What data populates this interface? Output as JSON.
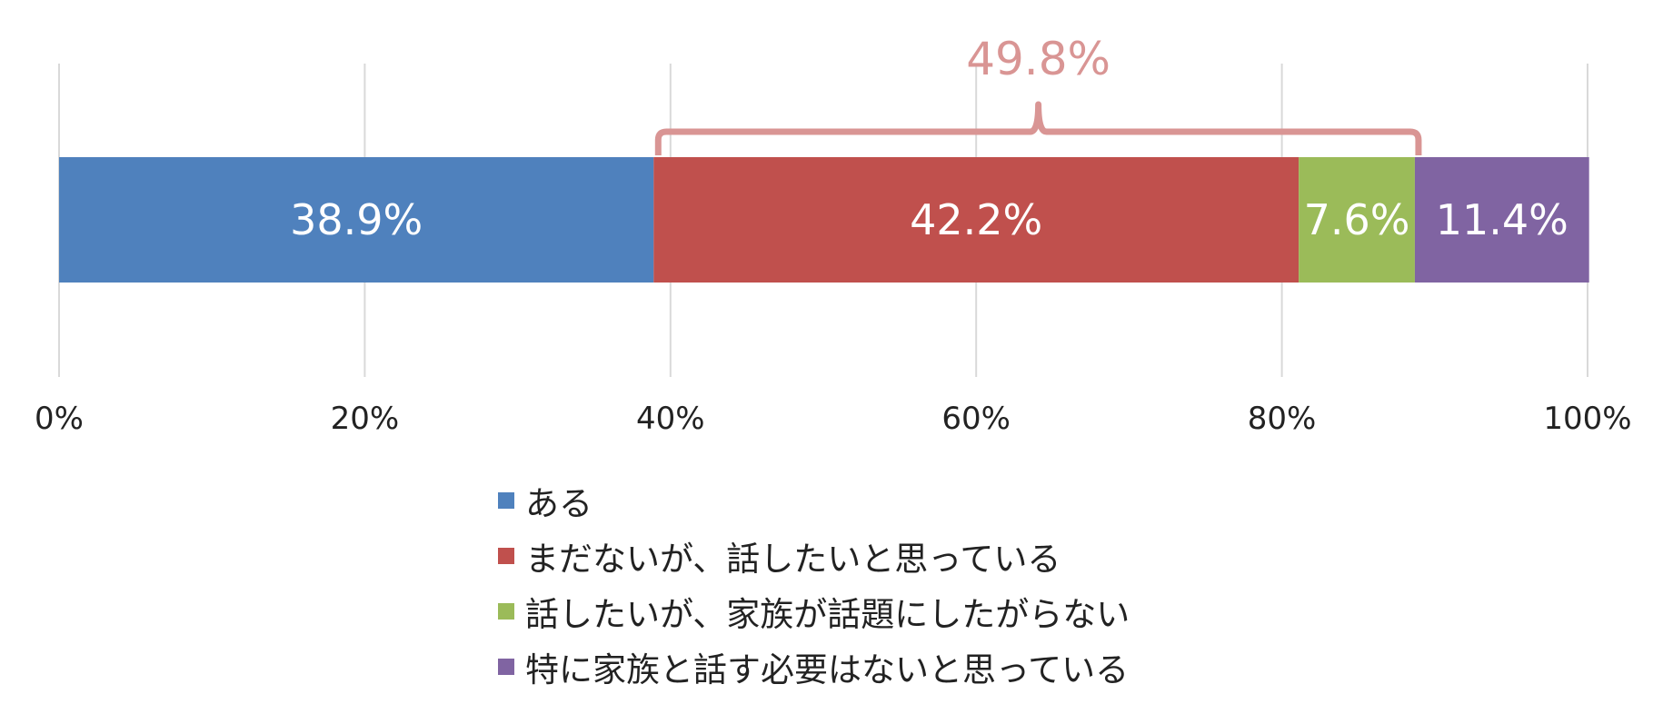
{
  "chart_data": {
    "type": "bar",
    "orientation": "horizontal",
    "stacked": true,
    "title": "",
    "xlabel": "",
    "ylabel": "",
    "xlim": [
      0,
      100
    ],
    "grid": true,
    "legend_position": "bottom",
    "x_ticks": [
      "0%",
      "20%",
      "40%",
      "60%",
      "80%",
      "100%"
    ],
    "series": [
      {
        "name": "ある",
        "value": 38.9,
        "label": "38.9%",
        "color": "#4F81BD"
      },
      {
        "name": "まだないが、話したいと思っている",
        "value": 42.2,
        "label": "42.2%",
        "color": "#C0504D"
      },
      {
        "name": "話したいが、家族が話題にしたがらない",
        "value": 7.6,
        "label": "7.6%",
        "color": "#9BBB59"
      },
      {
        "name": "特に家族と話す必要はないと思っている",
        "value": 11.4,
        "label": "11.4%",
        "color": "#8064A2"
      }
    ],
    "annotation": {
      "label": "49.8%",
      "from": 38.9,
      "to": 88.7,
      "color": "#D99594"
    }
  }
}
